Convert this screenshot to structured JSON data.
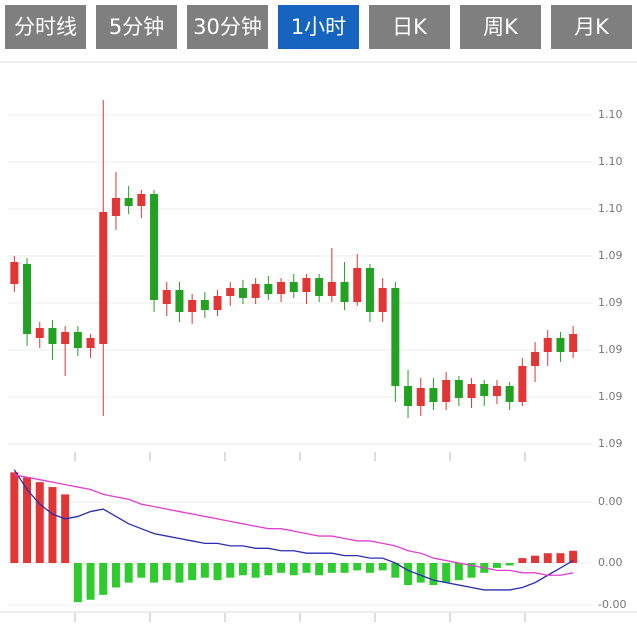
{
  "tabs": [
    {
      "label": "分时线",
      "active": false
    },
    {
      "label": "5分钟",
      "active": false
    },
    {
      "label": "30分钟",
      "active": false
    },
    {
      "label": "1小时",
      "active": true
    },
    {
      "label": "日K",
      "active": false
    },
    {
      "label": "周K",
      "active": false
    },
    {
      "label": "月K",
      "active": false
    }
  ],
  "colors": {
    "up": "#e23535",
    "down": "#22a122",
    "hist_down": "#2ecc2e",
    "dif": "#2b2fb0",
    "dea": "#e040cf",
    "tab_bg": "#7f7f7f",
    "tab_active": "#1565c0",
    "grid": "#ececec",
    "axis_text": "#777777"
  },
  "main_axis_labels": [
    "1.10",
    "1.10",
    "1.10",
    "1.09",
    "1.09",
    "1.09",
    "1.09",
    "1.09"
  ],
  "sub_axis_labels": [
    "0.00",
    "0.00",
    "-0.00"
  ],
  "chart_data": {
    "type": "candlestick+macd",
    "title": "",
    "timeframe_selected": "1小时",
    "ylim_main": [
      1.0855,
      1.1045
    ],
    "ylim_sub": [
      -0.002,
      0.004
    ],
    "grid": true,
    "candles": [
      [
        1.0938,
        1.0952,
        1.0934,
        1.0949
      ],
      [
        1.0948,
        1.0951,
        1.0907,
        1.0913
      ],
      [
        1.0911,
        1.0919,
        1.0906,
        1.0916
      ],
      [
        1.0916,
        1.092,
        1.09,
        1.0908
      ],
      [
        1.0908,
        1.0917,
        1.0892,
        1.0914
      ],
      [
        1.0914,
        1.0917,
        1.0902,
        1.0906
      ],
      [
        1.0906,
        1.0913,
        1.0901,
        1.0911
      ],
      [
        1.0908,
        1.103,
        1.0872,
        1.0974
      ],
      [
        1.0972,
        1.0994,
        1.0965,
        1.0981
      ],
      [
        1.0981,
        1.0987,
        1.0973,
        1.0977
      ],
      [
        1.0977,
        1.0985,
        1.0971,
        1.0983
      ],
      [
        1.0983,
        1.0985,
        1.0924,
        1.093
      ],
      [
        1.0928,
        1.0939,
        1.0922,
        1.0935
      ],
      [
        1.0935,
        1.0939,
        1.0919,
        1.0924
      ],
      [
        1.0924,
        1.0933,
        1.0918,
        1.093
      ],
      [
        1.093,
        1.0934,
        1.0921,
        1.0925
      ],
      [
        1.0925,
        1.0935,
        1.0922,
        1.0932
      ],
      [
        1.0932,
        1.0939,
        1.0927,
        1.0936
      ],
      [
        1.0936,
        1.094,
        1.0928,
        1.0931
      ],
      [
        1.0931,
        1.0941,
        1.0928,
        1.0938
      ],
      [
        1.0938,
        1.0942,
        1.093,
        1.0933
      ],
      [
        1.0933,
        1.0941,
        1.0929,
        1.0939
      ],
      [
        1.0939,
        1.0943,
        1.0931,
        1.0934
      ],
      [
        1.0934,
        1.0943,
        1.0928,
        1.0941
      ],
      [
        1.0941,
        1.0943,
        1.0929,
        1.0932
      ],
      [
        1.0932,
        1.0956,
        1.0929,
        1.0939
      ],
      [
        1.0939,
        1.0949,
        1.0925,
        1.0929
      ],
      [
        1.0929,
        1.0953,
        1.0927,
        1.0946
      ],
      [
        1.0946,
        1.0948,
        1.0919,
        1.0924
      ],
      [
        1.0924,
        1.0941,
        1.0919,
        1.0936
      ],
      [
        1.0936,
        1.0939,
        1.0879,
        1.0887
      ],
      [
        1.0887,
        1.0895,
        1.0871,
        1.0877
      ],
      [
        1.0877,
        1.0891,
        1.0872,
        1.0886
      ],
      [
        1.0886,
        1.0891,
        1.0875,
        1.0879
      ],
      [
        1.0879,
        1.0894,
        1.0875,
        1.089
      ],
      [
        1.089,
        1.0892,
        1.0877,
        1.0881
      ],
      [
        1.0881,
        1.0891,
        1.0876,
        1.0888
      ],
      [
        1.0888,
        1.089,
        1.0877,
        1.0882
      ],
      [
        1.0882,
        1.089,
        1.0878,
        1.0887
      ],
      [
        1.0887,
        1.0889,
        1.0875,
        1.0879
      ],
      [
        1.0879,
        1.0901,
        1.0877,
        1.0897
      ],
      [
        1.0897,
        1.0909,
        1.0889,
        1.0904
      ],
      [
        1.0904,
        1.0915,
        1.0897,
        1.0911
      ],
      [
        1.0911,
        1.0914,
        1.0899,
        1.0904
      ],
      [
        1.0904,
        1.0917,
        1.0901,
        1.0913
      ]
    ],
    "macd": {
      "hist": [
        0.0037,
        0.0035,
        0.0033,
        0.0031,
        0.0028,
        -0.0016,
        -0.0015,
        -0.0013,
        -0.001,
        -0.0008,
        -0.0006,
        -0.0008,
        -0.0007,
        -0.0008,
        -0.0007,
        -0.0006,
        -0.0007,
        -0.0006,
        -0.0005,
        -0.0006,
        -0.0005,
        -0.0004,
        -0.0005,
        -0.0004,
        -0.0005,
        -0.0004,
        -0.0004,
        -0.0003,
        -0.0004,
        -0.0003,
        -0.0006,
        -0.0009,
        -0.0008,
        -0.0009,
        -0.0008,
        -0.0007,
        -0.0006,
        -0.0004,
        -0.0002,
        -0.0001,
        0.0002,
        0.0003,
        0.0004,
        0.0004,
        0.0005
      ],
      "dif": [
        0.0038,
        0.003,
        0.0024,
        0.002,
        0.0018,
        0.0019,
        0.0021,
        0.0022,
        0.0019,
        0.0016,
        0.0014,
        0.0012,
        0.0011,
        0.001,
        0.0009,
        0.0008,
        0.0008,
        0.0007,
        0.0007,
        0.0006,
        0.0006,
        0.0005,
        0.0005,
        0.0004,
        0.0004,
        0.0004,
        0.0003,
        0.0003,
        0.0002,
        0.0002,
        0.0,
        -0.0003,
        -0.0005,
        -0.0007,
        -0.0008,
        -0.0009,
        -0.001,
        -0.0011,
        -0.0011,
        -0.0011,
        -0.001,
        -0.0008,
        -0.0005,
        -0.0002,
        0.0001
      ],
      "dea": [
        0.0036,
        0.0035,
        0.0034,
        0.0033,
        0.0032,
        0.0031,
        0.003,
        0.0028,
        0.0027,
        0.0026,
        0.0024,
        0.0023,
        0.0022,
        0.0021,
        0.002,
        0.0019,
        0.0018,
        0.0017,
        0.0016,
        0.0015,
        0.0014,
        0.0014,
        0.0013,
        0.0012,
        0.0011,
        0.0011,
        0.001,
        0.0009,
        0.0009,
        0.0008,
        0.0007,
        0.0005,
        0.0004,
        0.0002,
        0.0001,
        0.0,
        -0.0001,
        -0.0002,
        -0.0003,
        -0.0003,
        -0.0004,
        -0.0004,
        -0.0005,
        -0.0005,
        -0.0004
      ]
    }
  }
}
